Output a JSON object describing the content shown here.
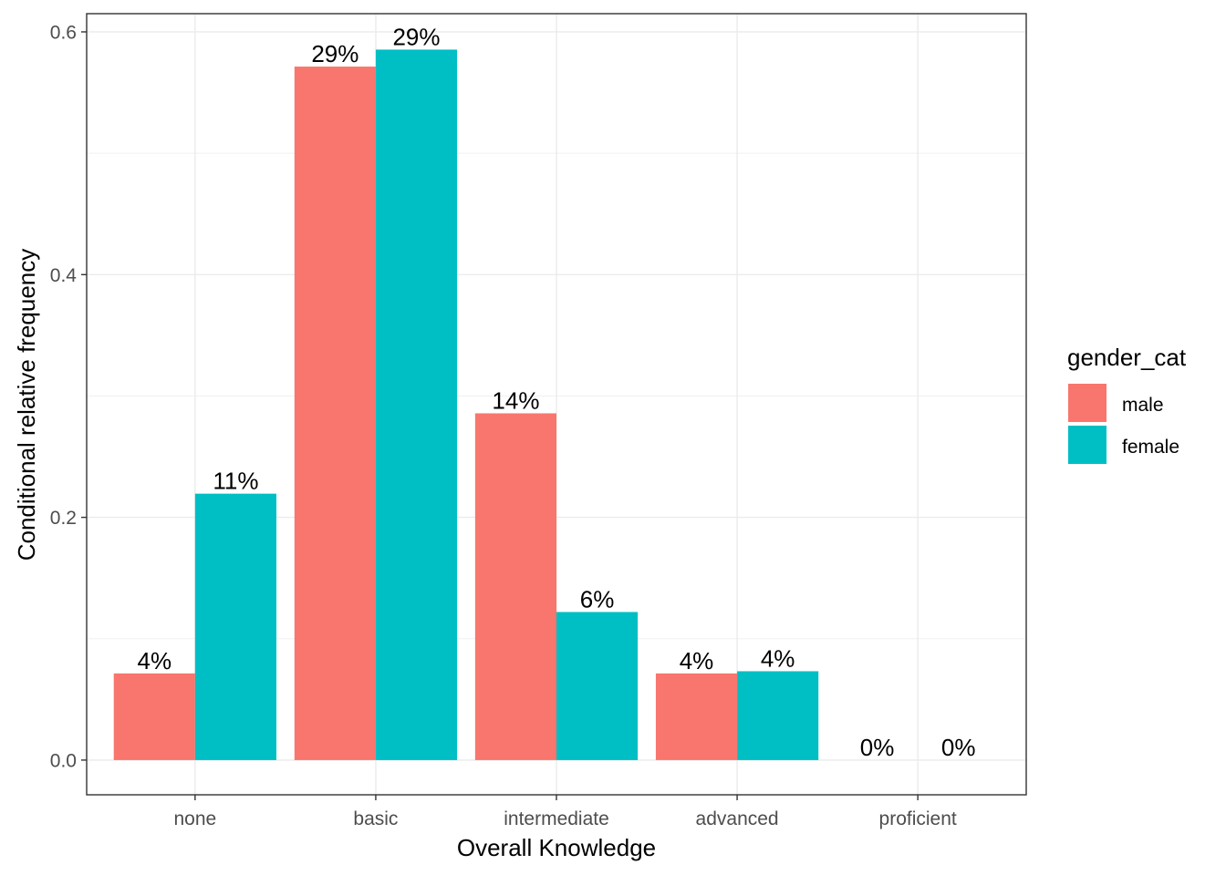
{
  "chart_data": {
    "type": "bar",
    "categories": [
      "none",
      "basic",
      "intermediate",
      "advanced",
      "proficient"
    ],
    "series": [
      {
        "name": "male",
        "color": "#F8766D",
        "values": [
          0.0714,
          0.5714,
          0.2857,
          0.0714,
          0.0
        ],
        "labels": [
          "4%",
          "29%",
          "14%",
          "4%",
          "0%"
        ]
      },
      {
        "name": "female",
        "color": "#00BFC4",
        "values": [
          0.2195,
          0.5854,
          0.122,
          0.0732,
          0.0
        ],
        "labels": [
          "11%",
          "29%",
          "6%",
          "4%",
          "0%"
        ]
      }
    ],
    "xlabel": "Overall Knowledge",
    "ylabel": "Conditional relative frequency",
    "ylim": [
      -0.0286,
      0.615
    ],
    "yticks": [
      0.0,
      0.2,
      0.4,
      0.6
    ],
    "ytick_labels": [
      "0.0",
      "0.2",
      "0.4",
      "0.6"
    ],
    "grid": true,
    "legend": {
      "title": "gender_cat",
      "position": "right"
    }
  }
}
